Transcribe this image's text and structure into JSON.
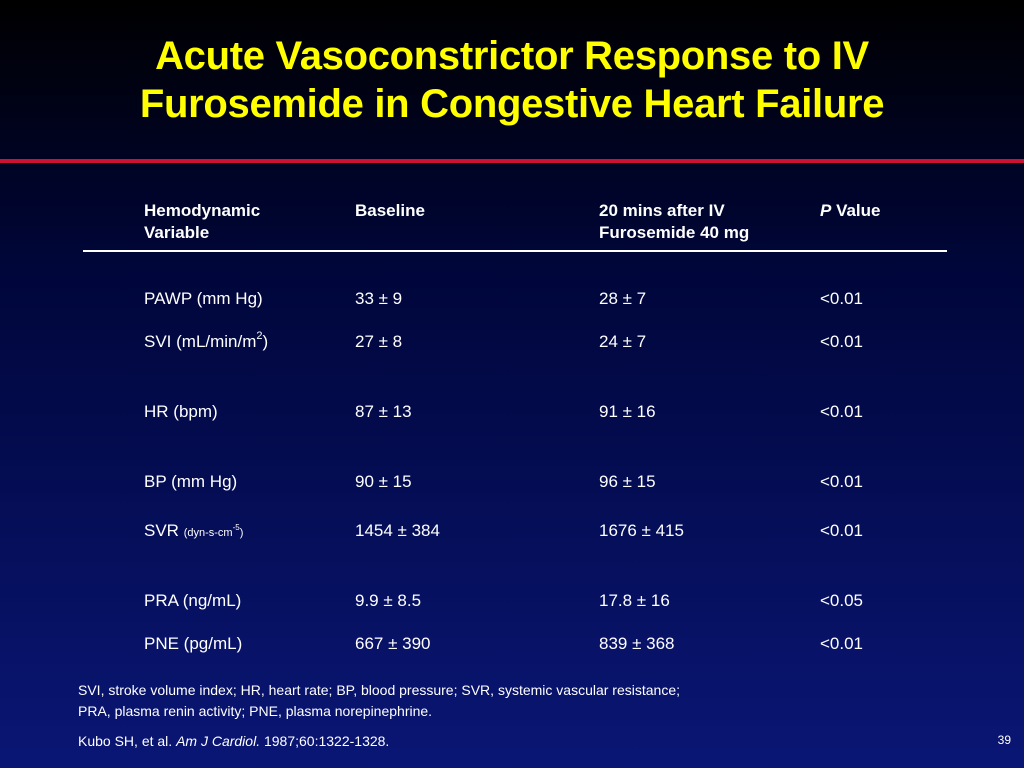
{
  "title": {
    "line1": "Acute Vasoconstrictor Response to IV",
    "line2": "Furosemide in Congestive Heart Failure"
  },
  "table": {
    "headers": {
      "variable_line1": "Hemodynamic",
      "variable_line2": "Variable",
      "baseline": "Baseline",
      "after_line1": "20 mins after IV",
      "after_line2": "Furosemide 40 mg",
      "p_italic": "P",
      "p_rest": " Value"
    },
    "rows": [
      {
        "variable": "PAWP (mm Hg)",
        "baseline": "33 ± 9",
        "after": "28 ± 7",
        "p": "<0.01"
      },
      {
        "variable": "SVI (mL/min/m",
        "variable_sup": "2",
        "variable_tail": ")",
        "baseline": "27 ± 8",
        "after": "24 ± 7",
        "p": "<0.01"
      },
      {
        "variable": "HR (bpm)",
        "baseline": "87 ± 13",
        "after": "91 ± 16",
        "p": "<0.01"
      },
      {
        "variable": "BP (mm Hg)",
        "baseline": "90 ± 15",
        "after": "96 ± 15",
        "p": "<0.01"
      },
      {
        "variable": "SVR ",
        "variable_small": "(dyn-s-cm",
        "variable_small_sup": "-5",
        "variable_small_tail": ")",
        "baseline": "1454 ± 384",
        "after": "1676 ± 415",
        "p": "<0.01"
      },
      {
        "variable": "PRA (ng/mL)",
        "baseline": "9.9 ± 8.5",
        "after": "17.8 ± 16",
        "p": "<0.05"
      },
      {
        "variable": "PNE (pg/mL)",
        "baseline": "667 ± 390",
        "after": "839 ± 368",
        "p": "<0.01"
      }
    ]
  },
  "footnote": {
    "line1": "SVI, stroke volume index; HR, heart rate; BP, blood pressure; SVR, systemic vascular resistance;",
    "line2": "PRA, plasma renin activity; PNE, plasma norepinephrine."
  },
  "citation": {
    "authors": "Kubo SH, et al. ",
    "journal": "Am J Cardiol.",
    "details": " 1987;60:1322-1328."
  },
  "page_number": "39"
}
